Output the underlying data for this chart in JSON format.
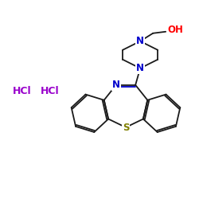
{
  "bg_color": "#ffffff",
  "bond_color": "#1a1a1a",
  "N_color": "#0000cc",
  "S_color": "#808000",
  "O_color": "#ff0000",
  "HCl_color": "#9900cc",
  "figsize": [
    2.5,
    2.5
  ],
  "dpi": 100,
  "HCl1": [
    28,
    135
  ],
  "HCl2": [
    63,
    135
  ],
  "HCl_fontsize": 9
}
